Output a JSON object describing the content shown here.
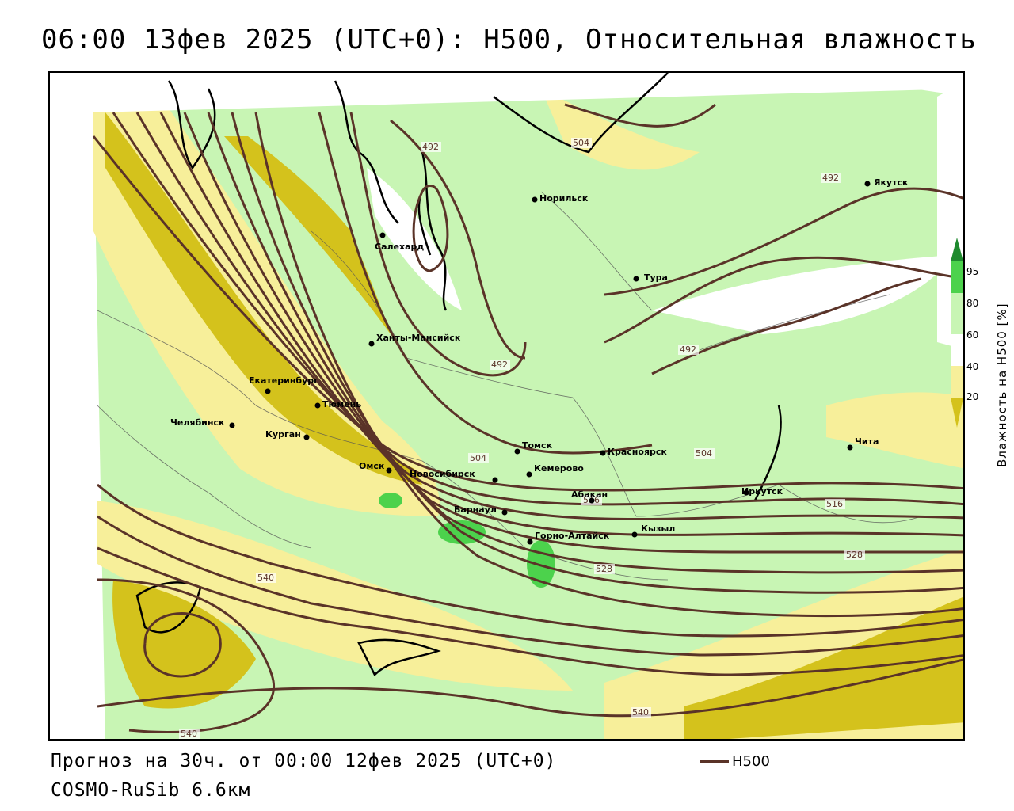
{
  "title": "06:00 13фев 2025 (UTC+0): H500, Относительная влажность",
  "footer": {
    "forecast": "Прогноз на 30ч. от 00:00 12фев 2025 (UTC+0)",
    "model": "COSMO-RuSib 6.6км"
  },
  "legend": {
    "line_label": "H500",
    "line_color": "#5a3328"
  },
  "colorbar": {
    "label": "Влажность на H500 [%]",
    "ticks": [
      "95",
      "80",
      "60",
      "40",
      "20"
    ],
    "colors": {
      "very_dry": "#d4c21c",
      "dry": "#f7ef9a",
      "neutral": "#ffffff",
      "moist": "#c8f5b4",
      "wet": "#4cd24c",
      "saturated": "#1f8a2e"
    }
  },
  "cities": [
    "Якутск",
    "Норильск",
    "Салехард",
    "Тура",
    "Ханты-Мансийск",
    "Екатеринбург",
    "Тюмень",
    "Челябинск",
    "Курган",
    "Омск",
    "Новосибирск",
    "Томск",
    "Красноярск",
    "Кемерово",
    "Барнаул",
    "Абакан",
    "Горно-Алтайск",
    "Кызыл",
    "Иркутск",
    "Чита"
  ],
  "contour_labels": [
    "492",
    "504",
    "492",
    "492",
    "492",
    "504",
    "504",
    "516",
    "516",
    "528",
    "528",
    "540",
    "540",
    "540"
  ]
}
